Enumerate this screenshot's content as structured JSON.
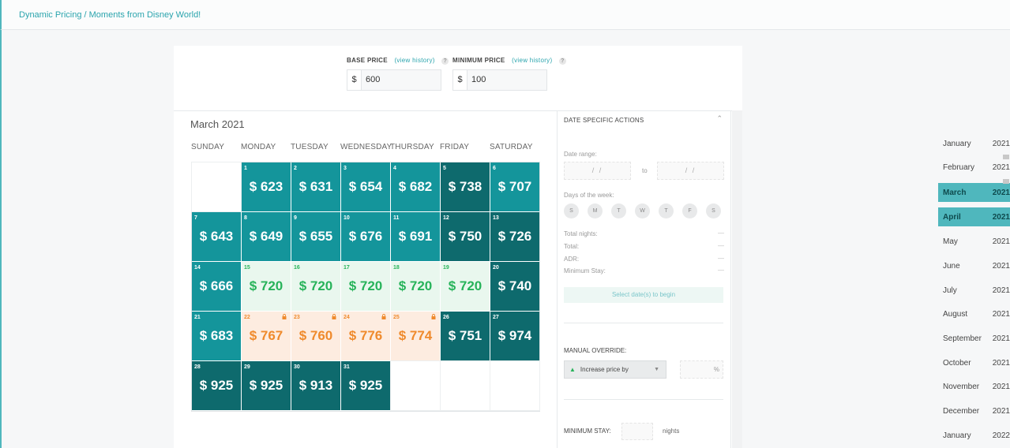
{
  "breadcrumb": "Dynamic Pricing / Moments from Disney World!",
  "base_price": {
    "label": "BASE PRICE",
    "history": "(view history)",
    "help": "?",
    "currency": "$",
    "value": "600"
  },
  "minimum_price": {
    "label": "MINIMUM PRICE",
    "history": "(view history)",
    "help": "?",
    "currency": "$",
    "value": "100"
  },
  "calendar": {
    "month_title": "March 2021",
    "weekdays": [
      "SUNDAY",
      "MONDAY",
      "TUESDAY",
      "WEDNESDAY",
      "THURSDAY",
      "FRIDAY",
      "SATURDAY"
    ],
    "days": [
      {
        "day": "1",
        "price": "$ 623",
        "status": "available"
      },
      {
        "day": "2",
        "price": "$ 631",
        "status": "available"
      },
      {
        "day": "3",
        "price": "$ 654",
        "status": "available"
      },
      {
        "day": "4",
        "price": "$ 682",
        "status": "available"
      },
      {
        "day": "5",
        "price": "$ 738",
        "status": "high"
      },
      {
        "day": "6",
        "price": "$ 707",
        "status": "available"
      },
      {
        "day": "7",
        "price": "$ 643",
        "status": "available"
      },
      {
        "day": "8",
        "price": "$ 649",
        "status": "available"
      },
      {
        "day": "9",
        "price": "$ 655",
        "status": "available"
      },
      {
        "day": "10",
        "price": "$ 676",
        "status": "available"
      },
      {
        "day": "11",
        "price": "$ 691",
        "status": "available"
      },
      {
        "day": "12",
        "price": "$ 750",
        "status": "high"
      },
      {
        "day": "13",
        "price": "$ 726",
        "status": "high"
      },
      {
        "day": "14",
        "price": "$ 666",
        "status": "available"
      },
      {
        "day": "15",
        "price": "$ 720",
        "status": "booked"
      },
      {
        "day": "16",
        "price": "$ 720",
        "status": "booked"
      },
      {
        "day": "17",
        "price": "$ 720",
        "status": "booked"
      },
      {
        "day": "18",
        "price": "$ 720",
        "status": "booked"
      },
      {
        "day": "19",
        "price": "$ 720",
        "status": "booked"
      },
      {
        "day": "20",
        "price": "$ 740",
        "status": "high"
      },
      {
        "day": "21",
        "price": "$ 683",
        "status": "available"
      },
      {
        "day": "22",
        "price": "$ 767",
        "status": "locked"
      },
      {
        "day": "23",
        "price": "$ 760",
        "status": "locked"
      },
      {
        "day": "24",
        "price": "$ 776",
        "status": "locked"
      },
      {
        "day": "25",
        "price": "$ 774",
        "status": "locked"
      },
      {
        "day": "26",
        "price": "$ 751",
        "status": "high"
      },
      {
        "day": "27",
        "price": "$ 974",
        "status": "high"
      },
      {
        "day": "28",
        "price": "$ 925",
        "status": "high"
      },
      {
        "day": "29",
        "price": "$ 925",
        "status": "high"
      },
      {
        "day": "30",
        "price": "$ 913",
        "status": "high"
      },
      {
        "day": "31",
        "price": "$ 925",
        "status": "high"
      }
    ],
    "first_weekday": 1
  },
  "date_actions": {
    "header": "DATE SPECIFIC ACTIONS",
    "date_range_label": "Date range:",
    "date_placeholder": "/ /",
    "to": "to",
    "days_of_week_label": "Days of the week:",
    "day_letters": [
      "S",
      "M",
      "T",
      "W",
      "T",
      "F",
      "S"
    ],
    "total_nights_label": "Total nights:",
    "total_label": "Total:",
    "adr_label": "ADR:",
    "min_stay_label": "Minimum Stay:",
    "dash": "—",
    "select_button": "Select date(s) to begin",
    "manual_override_label": "MANUAL OVERRIDE:",
    "override_option": "Increase price by",
    "percent": "%",
    "minimum_stay_label": "MINIMUM STAY:",
    "nights": "nights"
  },
  "month_list": [
    {
      "month": "January",
      "year": "2021",
      "active": false
    },
    {
      "month": "February",
      "year": "2021",
      "active": false
    },
    {
      "month": "March",
      "year": "2021",
      "active": true
    },
    {
      "month": "April",
      "year": "2021",
      "active": true
    },
    {
      "month": "May",
      "year": "2021",
      "active": false
    },
    {
      "month": "June",
      "year": "2021",
      "active": false
    },
    {
      "month": "July",
      "year": "2021",
      "active": false
    },
    {
      "month": "August",
      "year": "2021",
      "active": false
    },
    {
      "month": "September",
      "year": "2021",
      "active": false
    },
    {
      "month": "October",
      "year": "2021",
      "active": false
    },
    {
      "month": "November",
      "year": "2021",
      "active": false
    },
    {
      "month": "December",
      "year": "2021",
      "active": false
    },
    {
      "month": "January",
      "year": "2022",
      "active": false
    }
  ],
  "colors": {
    "available": "#14959b",
    "high": "#0e6a6d",
    "booked": "#27b35a",
    "locked": "#ef8a2c",
    "accent": "#4fb7bd"
  }
}
